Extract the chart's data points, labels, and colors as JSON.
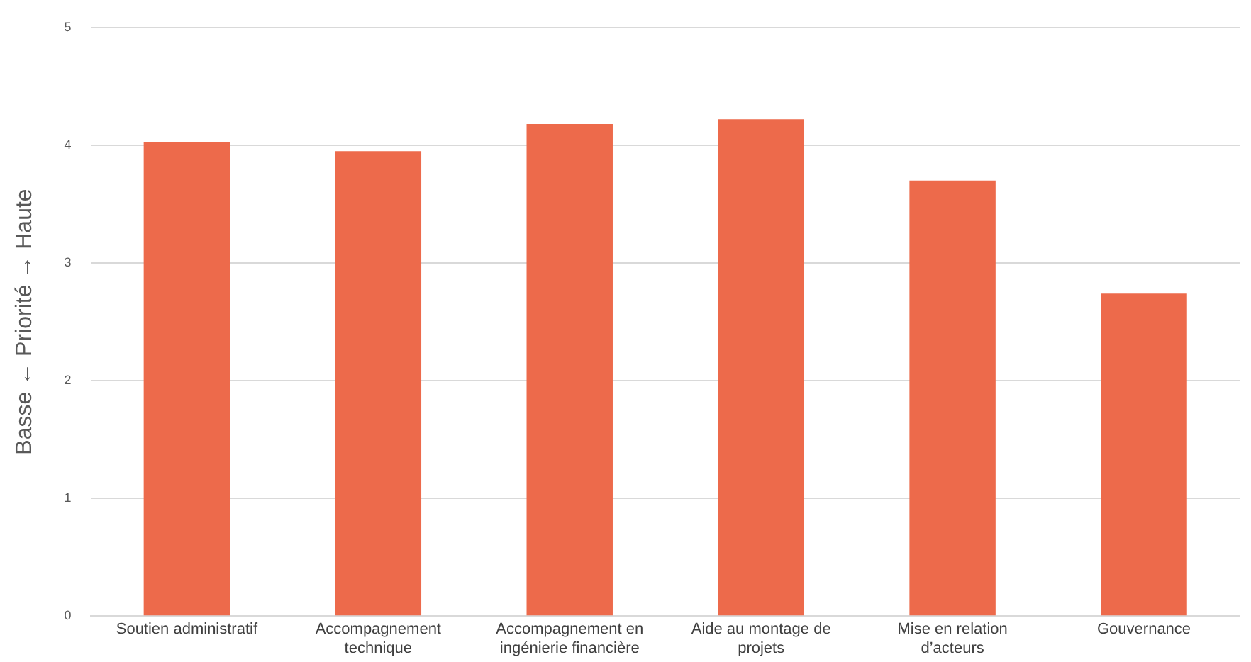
{
  "chart_data": {
    "type": "bar",
    "ylabel": "Basse ← Priorité → Haute",
    "categories": [
      "Soutien administratif",
      "Accompagnement technique",
      "Accompagnement en ingénierie financière",
      "Aide au montage de projets",
      "Mise en relation d’acteurs",
      "Gouvernance"
    ],
    "values": [
      4.03,
      3.95,
      4.18,
      4.22,
      3.7,
      2.74
    ],
    "color": "#ed6a4b",
    "ylim": [
      0,
      5
    ],
    "yticks": [
      0,
      1,
      2,
      3,
      4,
      5
    ],
    "grid": "y",
    "legend": false
  }
}
